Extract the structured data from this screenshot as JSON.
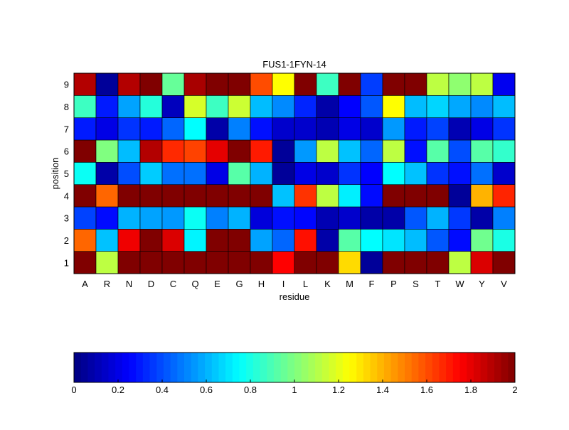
{
  "chart_data": {
    "type": "heatmap",
    "title": "FUS1-1FYN-14",
    "xlabel": "residue",
    "ylabel": "position",
    "x_categories": [
      "A",
      "R",
      "N",
      "D",
      "C",
      "Q",
      "E",
      "G",
      "H",
      "I",
      "L",
      "K",
      "M",
      "F",
      "P",
      "S",
      "T",
      "W",
      "Y",
      "V"
    ],
    "y_categories": [
      "1",
      "2",
      "3",
      "4",
      "5",
      "6",
      "7",
      "8",
      "9"
    ],
    "colormap": "jet",
    "clim": [
      0,
      2
    ],
    "colorbar": {
      "placement": "bottom",
      "ticks": [
        "0",
        "0.2",
        "0.4",
        "0.6",
        "0.8",
        "1",
        "1.2",
        "1.4",
        "1.6",
        "1.8",
        "2"
      ]
    },
    "values_by_position": {
      "9": [
        1.9,
        0.05,
        1.9,
        2.0,
        0.95,
        1.92,
        2.0,
        2.0,
        1.6,
        1.25,
        2.0,
        0.87,
        2.0,
        0.37,
        2.0,
        2.0,
        1.12,
        1.03,
        1.12,
        0.22
      ],
      "8": [
        0.87,
        0.3,
        0.57,
        0.82,
        0.12,
        1.17,
        0.87,
        1.15,
        0.62,
        0.52,
        0.32,
        0.08,
        0.25,
        0.42,
        1.25,
        0.62,
        0.67,
        0.58,
        0.52,
        0.62
      ],
      "7": [
        0.3,
        0.2,
        0.35,
        0.3,
        0.45,
        0.75,
        0.08,
        0.5,
        0.28,
        0.15,
        0.15,
        0.1,
        0.2,
        0.15,
        0.55,
        0.3,
        0.38,
        0.1,
        0.2,
        0.35
      ],
      "6": [
        2.0,
        1.0,
        0.62,
        1.9,
        1.67,
        1.62,
        1.8,
        2.0,
        1.7,
        0.05,
        0.55,
        1.12,
        0.63,
        0.45,
        1.12,
        0.28,
        0.92,
        0.4,
        0.92,
        0.85
      ],
      "5": [
        0.77,
        0.08,
        0.4,
        0.65,
        0.47,
        0.47,
        0.2,
        0.92,
        0.6,
        0.05,
        0.2,
        0.15,
        0.35,
        0.25,
        0.75,
        0.63,
        0.35,
        0.28,
        0.47,
        0.15
      ],
      "4": [
        2.0,
        1.55,
        2.0,
        2.0,
        2.0,
        2.0,
        2.0,
        2.0,
        2.0,
        0.63,
        1.65,
        1.12,
        0.72,
        0.27,
        2.0,
        2.0,
        2.0,
        0.05,
        1.4,
        1.68
      ],
      "3": [
        0.38,
        0.27,
        0.6,
        0.57,
        0.55,
        0.77,
        0.5,
        0.6,
        0.18,
        0.28,
        0.26,
        0.1,
        0.15,
        0.08,
        0.08,
        0.42,
        0.6,
        0.36,
        0.08,
        0.5
      ],
      "2": [
        1.55,
        0.63,
        1.78,
        2.0,
        1.82,
        0.73,
        2.0,
        2.0,
        0.57,
        0.45,
        1.72,
        0.08,
        0.92,
        0.75,
        0.7,
        0.62,
        0.42,
        0.27,
        0.97,
        0.8
      ],
      "1": [
        2.0,
        1.12,
        2.0,
        2.0,
        2.0,
        2.0,
        2.0,
        2.0,
        2.0,
        1.75,
        2.0,
        2.0,
        1.32,
        0.05,
        2.0,
        2.0,
        2.0,
        1.12,
        1.82,
        2.0
      ]
    }
  }
}
